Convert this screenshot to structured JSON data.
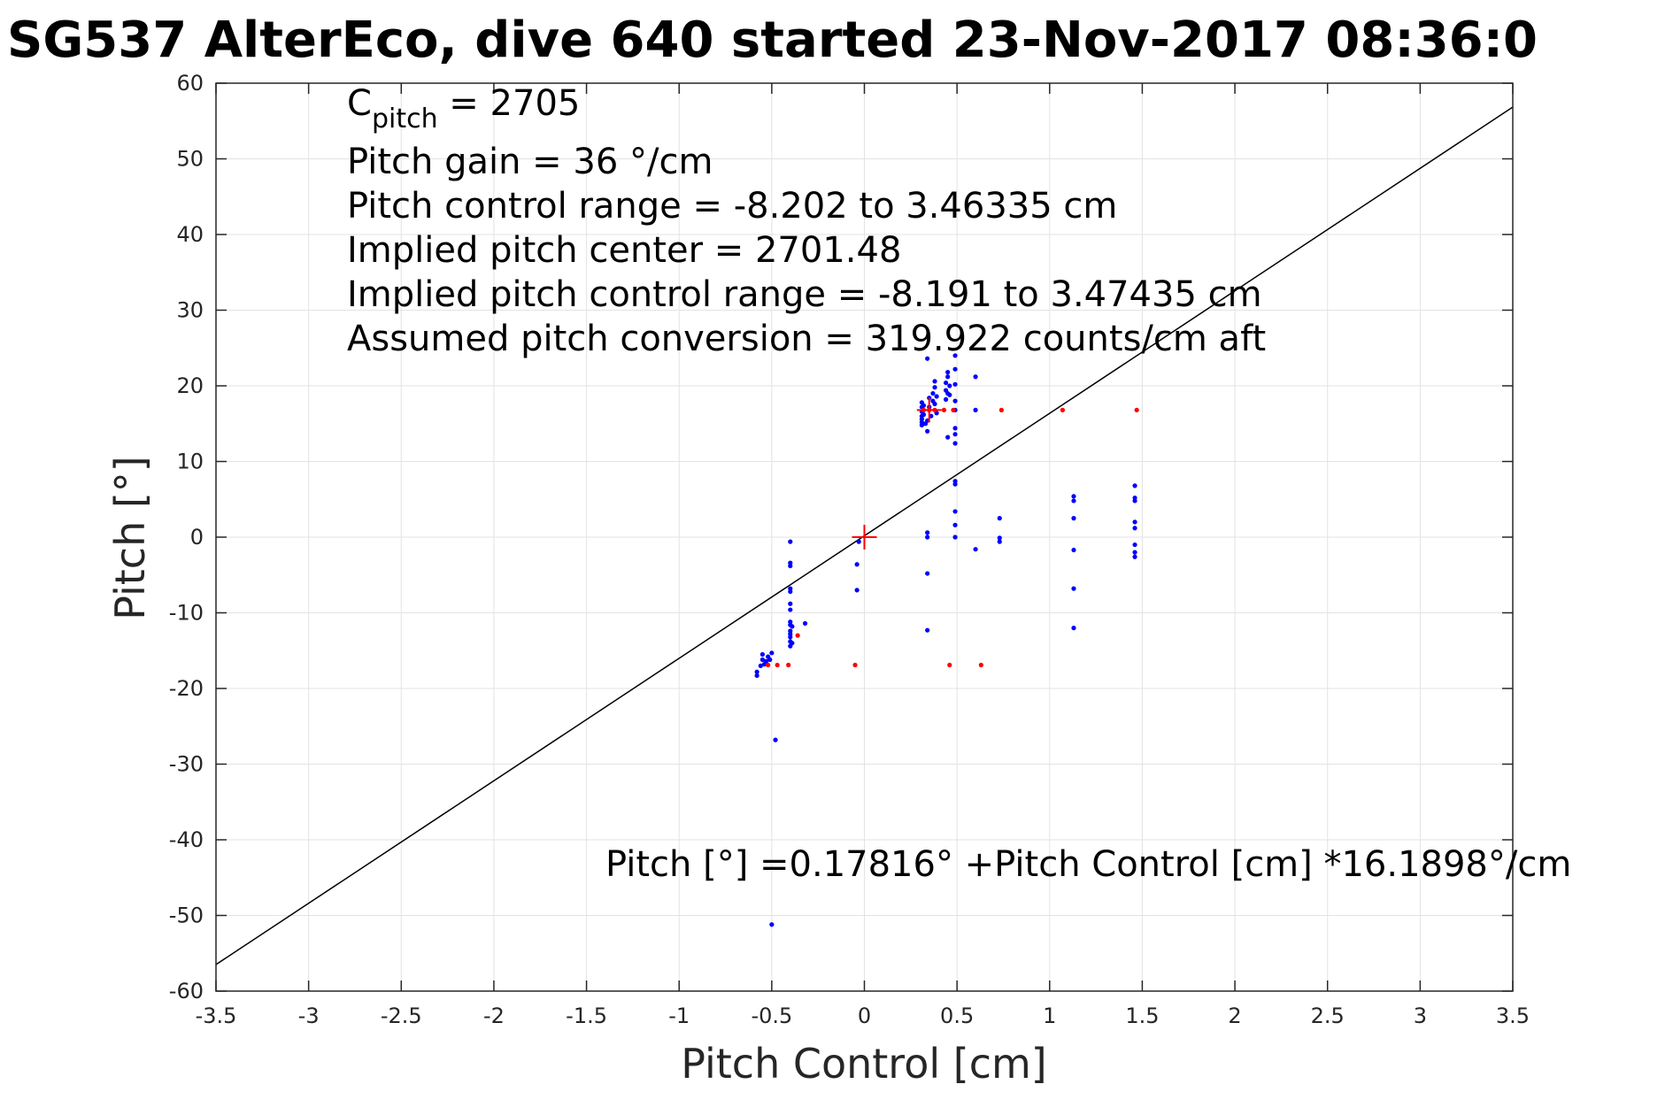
{
  "chart_data": {
    "type": "scatter",
    "title": "SG537 AlterEco, dive 640 started 23-Nov-2017 08:36:0",
    "xlabel": "Pitch Control [cm]",
    "ylabel": "Pitch [°]",
    "xlim": [
      -3.5,
      3.5
    ],
    "ylim": [
      -60,
      60
    ],
    "xticks": [
      "-3.5",
      "-3",
      "-2.5",
      "-2",
      "-1.5",
      "-1",
      "-0.5",
      "0",
      "0.5",
      "1",
      "1.5",
      "2",
      "2.5",
      "3",
      "3.5"
    ],
    "xtick_values": [
      -3.5,
      -3,
      -2.5,
      -2,
      -1.5,
      -1,
      -0.5,
      0,
      0.5,
      1,
      1.5,
      2,
      2.5,
      3,
      3.5
    ],
    "yticks": [
      "60",
      "50",
      "40",
      "30",
      "20",
      "10",
      "0",
      "-10",
      "-20",
      "-30",
      "-40",
      "-50",
      "-60"
    ],
    "ytick_values": [
      60,
      50,
      40,
      30,
      20,
      10,
      0,
      -10,
      -20,
      -30,
      -40,
      -50,
      -60
    ],
    "grid": true,
    "fit_line": {
      "intercept": 0.17816,
      "slope": 16.1898,
      "color": "#000000"
    },
    "center_marker": {
      "x": 0,
      "y": 0,
      "color": "#ff0000"
    },
    "center_marker_2": {
      "x": 0.35,
      "y": 16.8,
      "color": "#ff0000"
    },
    "series": [
      {
        "color": "#0000ff",
        "points": [
          [
            -0.58,
            -17.8
          ],
          [
            -0.58,
            -18.3
          ],
          [
            -0.56,
            -17.0
          ],
          [
            -0.55,
            -16.2
          ],
          [
            -0.55,
            -15.5
          ],
          [
            -0.54,
            -16.8
          ],
          [
            -0.53,
            -16.4
          ],
          [
            -0.52,
            -15.8
          ],
          [
            -0.51,
            -16.2
          ],
          [
            -0.5,
            -15.3
          ],
          [
            -0.48,
            -26.8
          ],
          [
            -0.5,
            -51.2
          ],
          [
            -0.4,
            -0.6
          ],
          [
            -0.4,
            -3.4
          ],
          [
            -0.4,
            -3.8
          ],
          [
            -0.4,
            -6.8
          ],
          [
            -0.4,
            -7.2
          ],
          [
            -0.4,
            -8.8
          ],
          [
            -0.4,
            -9.6
          ],
          [
            -0.4,
            -11.2
          ],
          [
            -0.4,
            -11.6
          ],
          [
            -0.4,
            -12.4
          ],
          [
            -0.4,
            -12.8
          ],
          [
            -0.4,
            -13.2
          ],
          [
            -0.4,
            -13.8
          ],
          [
            -0.4,
            -14.4
          ],
          [
            -0.39,
            -11.8
          ],
          [
            -0.39,
            -14.0
          ],
          [
            -0.32,
            -11.4
          ],
          [
            -0.04,
            -3.6
          ],
          [
            -0.04,
            -7.0
          ],
          [
            -0.03,
            -0.6
          ],
          [
            0.31,
            17.8
          ],
          [
            0.31,
            17.2
          ],
          [
            0.31,
            16.6
          ],
          [
            0.31,
            16.0
          ],
          [
            0.31,
            15.6
          ],
          [
            0.31,
            15.2
          ],
          [
            0.31,
            14.8
          ],
          [
            0.32,
            17.4
          ],
          [
            0.32,
            16.2
          ],
          [
            0.33,
            15.0
          ],
          [
            0.34,
            14.0
          ],
          [
            0.34,
            15.4
          ],
          [
            0.34,
            23.6
          ],
          [
            0.35,
            18.4
          ],
          [
            0.35,
            17.2
          ],
          [
            0.36,
            16.0
          ],
          [
            0.37,
            18.0
          ],
          [
            0.37,
            19.0
          ],
          [
            0.38,
            19.8
          ],
          [
            0.38,
            20.6
          ],
          [
            0.38,
            17.6
          ],
          [
            0.39,
            16.4
          ],
          [
            0.39,
            18.6
          ],
          [
            0.44,
            18.2
          ],
          [
            0.44,
            19.4
          ],
          [
            0.44,
            20.4
          ],
          [
            0.45,
            21.2
          ],
          [
            0.45,
            21.8
          ],
          [
            0.45,
            19.0
          ],
          [
            0.45,
            13.2
          ],
          [
            0.46,
            18.8
          ],
          [
            0.46,
            20.0
          ],
          [
            0.49,
            22.2
          ],
          [
            0.49,
            20.2
          ],
          [
            0.49,
            18.0
          ],
          [
            0.49,
            16.8
          ],
          [
            0.49,
            14.4
          ],
          [
            0.49,
            13.6
          ],
          [
            0.49,
            12.4
          ],
          [
            0.49,
            24.0
          ],
          [
            0.6,
            21.2
          ],
          [
            0.6,
            16.8
          ],
          [
            0.34,
            0.6
          ],
          [
            0.34,
            0.0
          ],
          [
            0.34,
            -4.8
          ],
          [
            0.34,
            -12.3
          ],
          [
            0.49,
            7.4
          ],
          [
            0.49,
            7.0
          ],
          [
            0.49,
            3.4
          ],
          [
            0.49,
            1.6
          ],
          [
            0.49,
            0.0
          ],
          [
            0.6,
            -1.6
          ],
          [
            0.73,
            2.5
          ],
          [
            0.73,
            -0.1
          ],
          [
            0.73,
            -0.6
          ],
          [
            1.13,
            5.4
          ],
          [
            1.13,
            4.8
          ],
          [
            1.13,
            2.5
          ],
          [
            1.13,
            -1.7
          ],
          [
            1.13,
            -6.8
          ],
          [
            1.13,
            -12.0
          ],
          [
            1.46,
            6.8
          ],
          [
            1.46,
            5.2
          ],
          [
            1.46,
            4.8
          ],
          [
            1.46,
            2.0
          ],
          [
            1.46,
            1.2
          ],
          [
            1.46,
            -1.0
          ],
          [
            1.46,
            -2.0
          ],
          [
            1.46,
            -2.6
          ]
        ]
      },
      {
        "color": "#ff0000",
        "points": [
          [
            -0.52,
            -16.9
          ],
          [
            -0.47,
            -16.9
          ],
          [
            -0.41,
            -16.9
          ],
          [
            -0.36,
            -13.0
          ],
          [
            -0.05,
            -16.9
          ],
          [
            0.32,
            16.8
          ],
          [
            0.35,
            16.8
          ],
          [
            0.38,
            16.8
          ],
          [
            0.43,
            16.8
          ],
          [
            0.48,
            16.8
          ],
          [
            0.74,
            16.8
          ],
          [
            1.07,
            16.8
          ],
          [
            1.47,
            16.8
          ],
          [
            0.46,
            -16.9
          ],
          [
            0.63,
            -16.9
          ]
        ]
      }
    ],
    "annotations": {
      "cpitch_main": "C",
      "cpitch_sub": "pitch",
      "cpitch_value": " = 2705",
      "pitch_gain": "Pitch gain = 36 °/cm",
      "control_range": "Pitch control range = -8.202 to 3.46335 cm",
      "implied_center": "Implied pitch center = 2701.48",
      "implied_range": "Implied pitch control range = -8.191 to 3.47435 cm",
      "conversion": "Assumed pitch conversion = 319.922 counts/cm aft",
      "equation": "Pitch [°] =0.17816° +Pitch Control [cm] *16.1898°/cm"
    }
  }
}
